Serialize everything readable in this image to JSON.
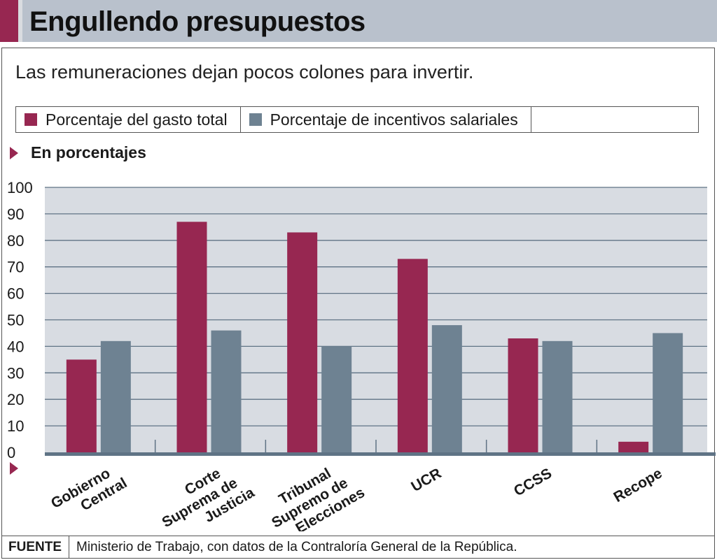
{
  "header": {
    "title": "Engullendo presupuestos"
  },
  "subtitle": "Las remuneraciones dejan pocos colones para invertir.",
  "units_label": "En porcentajes",
  "source": {
    "label": "FUENTE",
    "text": "Ministerio de Trabajo, con datos de la Contraloría General de la República."
  },
  "colors": {
    "accent": "#972751",
    "series1": "#972751",
    "series2": "#6e8292",
    "plot_bg": "#d8dce2",
    "grid": "#5f7385"
  },
  "chart_data": {
    "type": "bar",
    "categories": [
      [
        "Gobierno",
        "Central"
      ],
      [
        "Corte",
        "Suprema de",
        "Justicia"
      ],
      [
        "Tribunal",
        "Supremo de",
        "Elecciones"
      ],
      [
        "UCR"
      ],
      [
        "CCSS"
      ],
      [
        "Recope"
      ]
    ],
    "series": [
      {
        "name": "Porcentaje del gasto total",
        "values": [
          35,
          87,
          83,
          73,
          43,
          4
        ]
      },
      {
        "name": "Porcentaje de incentivos salariales",
        "values": [
          42,
          46,
          40,
          48,
          42,
          45
        ]
      }
    ],
    "ylim": [
      0,
      100
    ],
    "yticks": [
      0,
      10,
      20,
      30,
      40,
      50,
      60,
      70,
      80,
      90,
      100
    ],
    "grid": true,
    "legend": "top"
  }
}
